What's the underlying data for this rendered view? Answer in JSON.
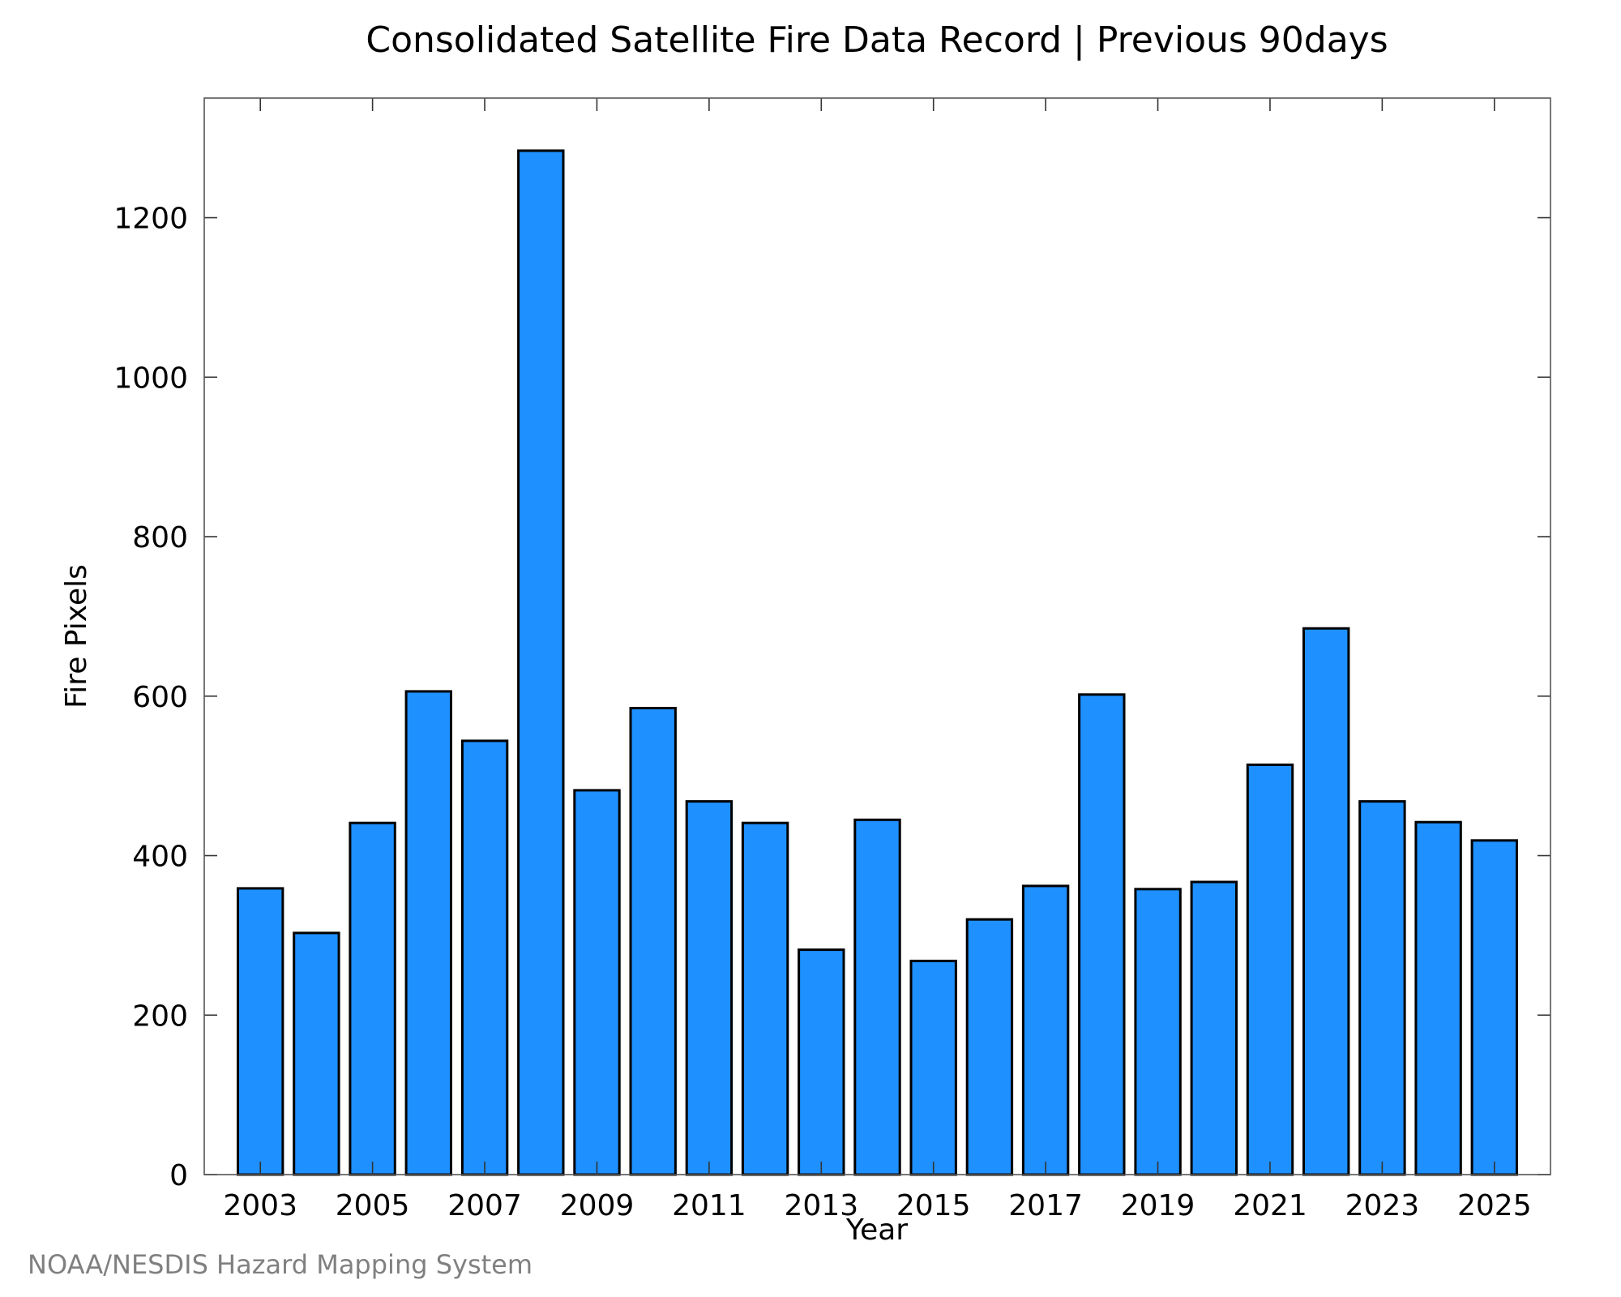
{
  "chart_data": {
    "type": "bar",
    "title": "Consolidated Satellite Fire Data Record | Previous 90days",
    "xlabel": "Year",
    "ylabel": "Fire Pixels",
    "categories": [
      2003,
      2004,
      2005,
      2006,
      2007,
      2008,
      2009,
      2010,
      2011,
      2012,
      2013,
      2014,
      2015,
      2016,
      2017,
      2018,
      2019,
      2020,
      2021,
      2022,
      2023,
      2024,
      2025
    ],
    "values": [
      359,
      303,
      441,
      606,
      544,
      1284,
      482,
      585,
      468,
      441,
      282,
      445,
      268,
      320,
      362,
      602,
      358,
      367,
      514,
      685,
      468,
      442,
      419
    ],
    "x_tick_labels": [
      "2003",
      "2005",
      "2007",
      "2009",
      "2011",
      "2013",
      "2015",
      "2017",
      "2019",
      "2021",
      "2023",
      "2025"
    ],
    "y_tick_labels": [
      "0",
      "200",
      "400",
      "600",
      "800",
      "1000",
      "1200"
    ],
    "ylim": [
      0,
      1350
    ],
    "grid": false,
    "legend": "none",
    "bar_color": "#1E90FF",
    "bar_edge_color": "#000000"
  },
  "footer": {
    "credit": "NOAA/NESDIS Hazard Mapping System"
  }
}
